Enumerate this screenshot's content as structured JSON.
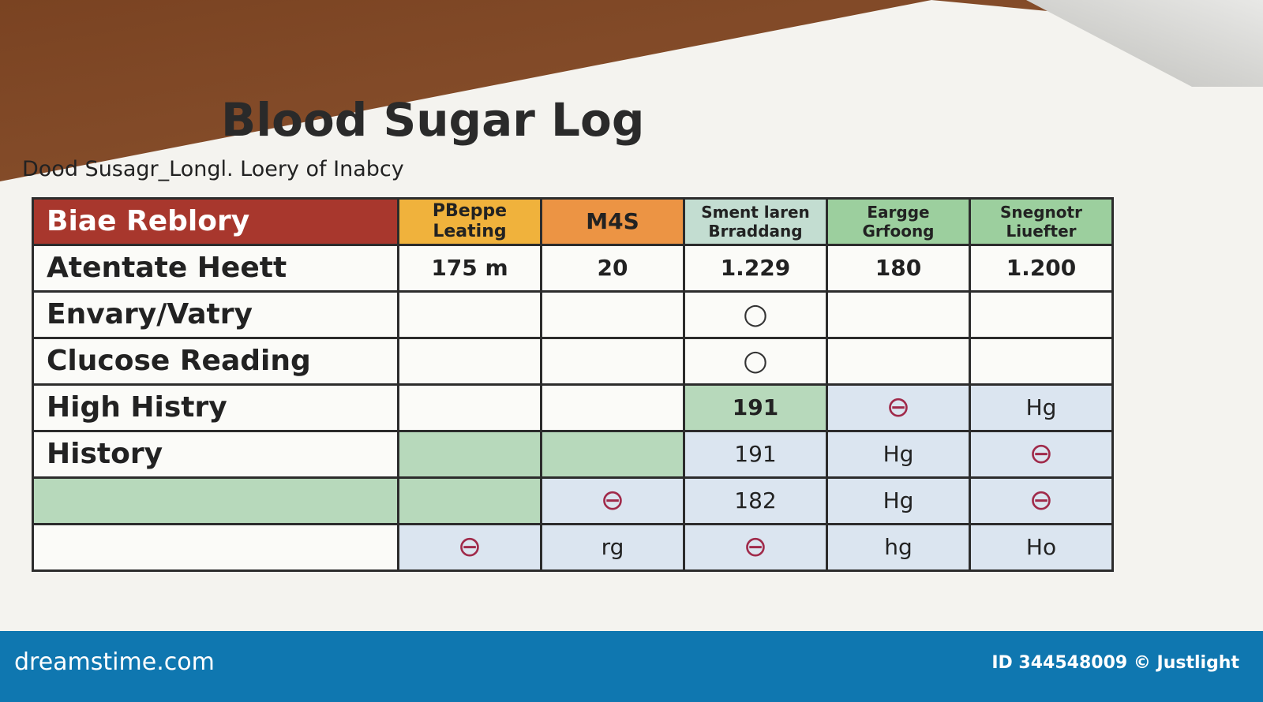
{
  "document": {
    "title": "Blood Sugar Log",
    "subtitle": "Dood Susagr_Longl. Loery of Inabcy",
    "headers": [
      "Biae Reblory",
      "PBeppe Leating",
      "M4S",
      "Sment laren Brraddang",
      "Eargge Grfoong",
      "Snegnotr Liuefter"
    ],
    "rows": [
      {
        "label": "Atentate Heett",
        "cells": [
          "175 m",
          "20",
          "1.229",
          "180",
          "1.200"
        ]
      },
      {
        "label": "Envary/Vatry",
        "cells": [
          "",
          "",
          "○",
          "",
          ""
        ]
      },
      {
        "label": "Clucose Reading",
        "cells": [
          "",
          "",
          "○",
          "",
          ""
        ]
      },
      {
        "label": "High Histry",
        "cells": [
          "",
          "",
          "191",
          "⊖",
          "Hg"
        ]
      },
      {
        "label": "History",
        "cells": [
          "",
          "",
          "191",
          "Hg",
          "⊖"
        ]
      },
      {
        "label": "",
        "cells": [
          "",
          "⊖",
          "182",
          "Hg",
          "⊖"
        ]
      },
      {
        "label": "",
        "cells": [
          "⊖",
          "rg",
          "⊖",
          "hg",
          "Ho"
        ]
      }
    ]
  },
  "watermark": {
    "logo": "dreamstime.com",
    "credit": "ID 344548009 © Justlight"
  },
  "colors": {
    "banner": "#0f77b0",
    "red_header": "#a8372d",
    "yellow_header": "#f0b23c",
    "orange_header": "#ec9444",
    "green_header": "#9ccf9e"
  }
}
